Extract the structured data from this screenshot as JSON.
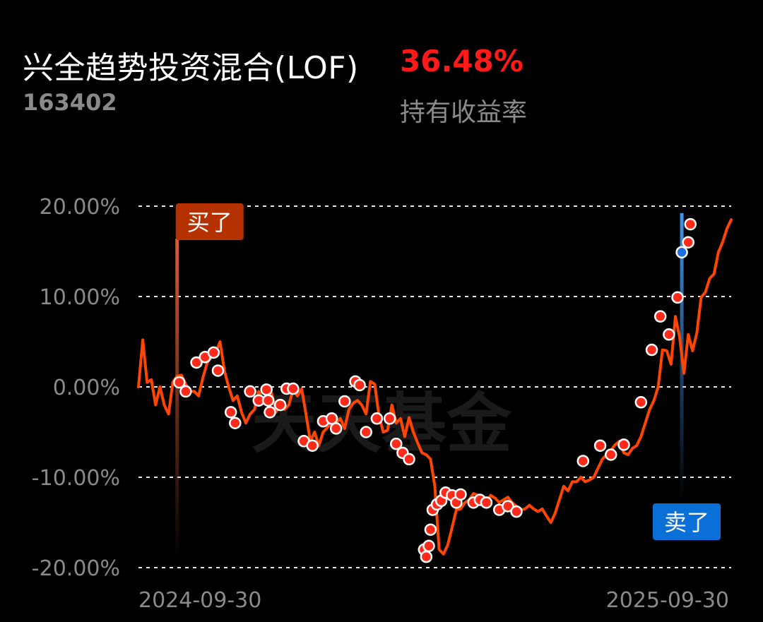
{
  "header": {
    "fund_name": "兴全趋势投资混合(LOF)",
    "return_value": "36.48%",
    "fund_code": "163402",
    "return_label": "持有收益率"
  },
  "colors": {
    "background": "#000000",
    "line": "#ff4500",
    "marker_fill": "#ff2a1a",
    "buy_tag": "#b53100",
    "sell_tag": "#0a6fd6",
    "sell_marker": "#1e6fe0",
    "grid": "#ffffff",
    "positive_return": "#ff1a1a"
  },
  "watermark": "天天基金",
  "chart_data": {
    "type": "line",
    "ylim": [
      -20,
      20
    ],
    "ytick_labels": [
      "20.00%",
      "10.00%",
      "0.00%",
      "-10.00%",
      "-20.00%"
    ],
    "ytick_values": [
      20,
      10,
      0,
      -10,
      -20
    ],
    "x_start_label": "2024-09-30",
    "x_end_label": "2025-09-30",
    "grid": "dashed horizontal",
    "series_points": [
      [
        0,
        0
      ],
      [
        1,
        5.2
      ],
      [
        2,
        0.5
      ],
      [
        3,
        0.8
      ],
      [
        4,
        -2
      ],
      [
        5,
        0
      ],
      [
        6,
        -2
      ],
      [
        7,
        -3
      ],
      [
        8,
        0.5
      ],
      [
        9,
        1.2
      ],
      [
        10,
        1.3
      ],
      [
        11,
        0.3
      ],
      [
        12,
        -0.5
      ],
      [
        13,
        -0.5
      ],
      [
        14,
        -1
      ],
      [
        15,
        1
      ],
      [
        16,
        2.7
      ],
      [
        17,
        3.3
      ],
      [
        18,
        3.8
      ],
      [
        19,
        5
      ],
      [
        20,
        1.8
      ],
      [
        21,
        0
      ],
      [
        22,
        -1.5
      ],
      [
        23,
        -1
      ],
      [
        24,
        -2.8
      ],
      [
        25,
        -4
      ],
      [
        26,
        -3
      ],
      [
        27,
        -2.5
      ],
      [
        28,
        -0.5
      ],
      [
        29,
        -1.5
      ],
      [
        30,
        -1.5
      ],
      [
        31,
        -0.7
      ],
      [
        32,
        -2.8
      ],
      [
        33,
        -2
      ],
      [
        34,
        -2.5
      ],
      [
        35,
        -2
      ],
      [
        36,
        -0.3
      ],
      [
        37,
        -1
      ],
      [
        38,
        -0.2
      ],
      [
        39,
        -3
      ],
      [
        40,
        -6
      ],
      [
        41,
        -5
      ],
      [
        42,
        -6.5
      ],
      [
        43,
        -5
      ],
      [
        44,
        -4.5
      ],
      [
        45,
        -3.8
      ],
      [
        46,
        -4
      ],
      [
        47,
        -3.5
      ],
      [
        48,
        -4.6
      ],
      [
        49,
        -2.5
      ],
      [
        50,
        -1.8
      ],
      [
        51,
        -1.5
      ],
      [
        52,
        -2
      ],
      [
        53,
        -3
      ],
      [
        54,
        0.6
      ],
      [
        55,
        0.3
      ],
      [
        56,
        -3.2
      ],
      [
        57,
        -5
      ],
      [
        58,
        -4.8
      ],
      [
        59,
        -2
      ],
      [
        60,
        -4
      ],
      [
        61,
        -3.5
      ],
      [
        62,
        -5.5
      ],
      [
        63,
        -3.4
      ],
      [
        64,
        -5
      ],
      [
        65,
        -6.2
      ],
      [
        66,
        -7.3
      ],
      [
        67,
        -7.5
      ],
      [
        68,
        -8
      ],
      [
        69,
        -11
      ],
      [
        70,
        -18
      ],
      [
        71,
        -18.5
      ],
      [
        72,
        -17.5
      ],
      [
        73,
        -15.6
      ],
      [
        74,
        -13.6
      ],
      [
        75,
        -13.5
      ],
      [
        76,
        -12.8
      ],
      [
        77,
        -12.5
      ],
      [
        78,
        -11.8
      ],
      [
        79,
        -12
      ],
      [
        80,
        -12.5
      ],
      [
        81,
        -12.8
      ],
      [
        82,
        -12
      ],
      [
        83,
        -12.3
      ],
      [
        84,
        -12.8
      ],
      [
        85,
        -12.5
      ],
      [
        86,
        -12.2
      ],
      [
        87,
        -12.8
      ],
      [
        88,
        -13.2
      ],
      [
        89,
        -13.6
      ],
      [
        90,
        -13.5
      ],
      [
        91,
        -13.1
      ],
      [
        92,
        -13.5
      ],
      [
        93,
        -13.8
      ],
      [
        94,
        -13.5
      ],
      [
        95,
        -14.3
      ],
      [
        96,
        -15
      ],
      [
        97,
        -14
      ],
      [
        98,
        -12.5
      ],
      [
        99,
        -11
      ],
      [
        100,
        -11.5
      ],
      [
        101,
        -10.5
      ],
      [
        102,
        -10.5
      ],
      [
        103,
        -10
      ],
      [
        104,
        -10.5
      ],
      [
        105,
        -10.3
      ],
      [
        106,
        -10
      ],
      [
        107,
        -9
      ],
      [
        108,
        -8
      ],
      [
        109,
        -7.5
      ],
      [
        110,
        -7
      ],
      [
        111,
        -6.4
      ],
      [
        112,
        -6
      ],
      [
        113,
        -7.3
      ],
      [
        114,
        -7.5
      ],
      [
        115,
        -6.8
      ],
      [
        116,
        -6.5
      ],
      [
        117,
        -5.5
      ],
      [
        118,
        -4
      ],
      [
        119,
        -2.5
      ],
      [
        120,
        -1.5
      ],
      [
        121,
        0
      ],
      [
        122,
        4.1
      ],
      [
        123,
        4
      ],
      [
        124,
        2.5
      ],
      [
        125,
        7.8
      ],
      [
        126,
        5.5
      ],
      [
        127,
        1.5
      ],
      [
        128,
        5.8
      ],
      [
        129,
        4
      ],
      [
        130,
        6
      ],
      [
        131,
        9.9
      ],
      [
        132,
        10.5
      ],
      [
        133,
        12
      ],
      [
        134,
        12.5
      ],
      [
        135,
        14.9
      ],
      [
        136,
        16
      ],
      [
        137,
        17.5
      ],
      [
        138,
        18.5
      ]
    ],
    "markers": [
      [
        9.5,
        0.5
      ],
      [
        11,
        -0.5
      ],
      [
        13.5,
        2.7
      ],
      [
        15.5,
        3.3
      ],
      [
        17.5,
        3.8
      ],
      [
        18.5,
        1.8
      ],
      [
        21.5,
        -2.8
      ],
      [
        22.5,
        -4
      ],
      [
        26,
        -0.5
      ],
      [
        28,
        -1.5
      ],
      [
        29.8,
        -0.3
      ],
      [
        30.2,
        -1.5
      ],
      [
        30.6,
        -2.8
      ],
      [
        33,
        -2
      ],
      [
        34.5,
        -0.2
      ],
      [
        36,
        -0.2
      ],
      [
        38.5,
        -6
      ],
      [
        40.5,
        -6.5
      ],
      [
        43,
        -3.8
      ],
      [
        45,
        -3.5
      ],
      [
        46,
        -4.6
      ],
      [
        48,
        -1.6
      ],
      [
        50.5,
        0.6
      ],
      [
        51.5,
        0.2
      ],
      [
        53,
        -5
      ],
      [
        55.5,
        -3.5
      ],
      [
        58.5,
        -3.5
      ],
      [
        60,
        -6.3
      ],
      [
        61.5,
        -7.3
      ],
      [
        63,
        -8
      ],
      [
        66.5,
        -18
      ],
      [
        67,
        -18.8
      ],
      [
        67.6,
        -17.6
      ],
      [
        68,
        -15.8
      ],
      [
        68.5,
        -13.6
      ],
      [
        69.5,
        -13
      ],
      [
        70.5,
        -12.6
      ],
      [
        71.5,
        -11.7
      ],
      [
        73,
        -12
      ],
      [
        74,
        -12.8
      ],
      [
        75,
        -11.9
      ],
      [
        78,
        -12.8
      ],
      [
        79.5,
        -12.5
      ],
      [
        81,
        -12.8
      ],
      [
        84,
        -13.6
      ],
      [
        86,
        -13.2
      ],
      [
        88,
        -13.8
      ],
      [
        103.5,
        -8.2
      ],
      [
        107.5,
        -6.5
      ],
      [
        110,
        -7.5
      ],
      [
        113,
        -6.4
      ],
      [
        117,
        -1.7
      ],
      [
        119.5,
        4.1
      ],
      [
        121.5,
        7.8
      ],
      [
        123.5,
        5.8
      ],
      [
        125.5,
        9.9
      ],
      [
        128,
        16
      ],
      [
        128.5,
        18
      ]
    ],
    "buy_event": {
      "label": "买了",
      "x_index": 9
    },
    "sell_event": {
      "label": "卖了",
      "x_index": 126.5,
      "value": 14.9
    }
  }
}
